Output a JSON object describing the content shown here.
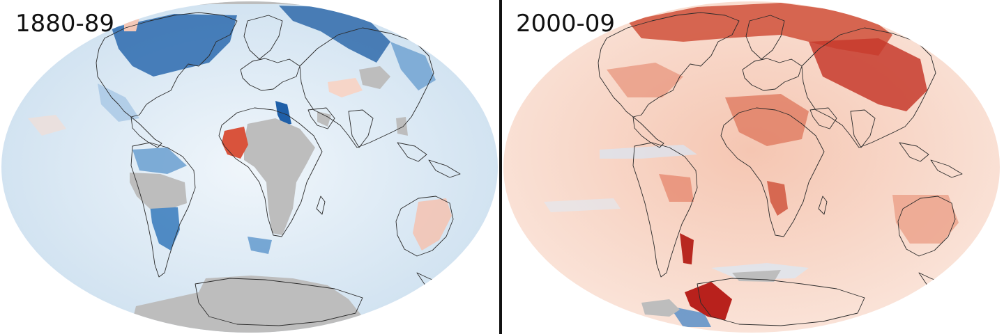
{
  "panels": [
    {
      "decade_label": "1880-89",
      "anomaly_tone": "cool",
      "colors": {
        "ocean_base": "#e4eff8",
        "anomaly_strong": "#1f5fa8",
        "anomaly_medium": "#4f8fc8",
        "anomaly_light": "#b8d3ea",
        "warm_spot": "#d9533c",
        "warm_light": "#f4c8b8",
        "no_data": "#bdbdbd"
      }
    },
    {
      "decade_label": "2000-09",
      "anomaly_tone": "warm",
      "colors": {
        "ocean_base": "#f7ddd0",
        "anomaly_strong": "#b82820",
        "anomaly_medium": "#db6a52",
        "anomaly_light": "#f2b8a2",
        "cool_spot": "#5b8fc8",
        "cool_light": "#d8e6f3",
        "no_data": "#bdbdbd"
      }
    }
  ],
  "colors": {
    "divider": "#111111",
    "coastline": "#2a2a2a",
    "background": "#ffffff"
  }
}
